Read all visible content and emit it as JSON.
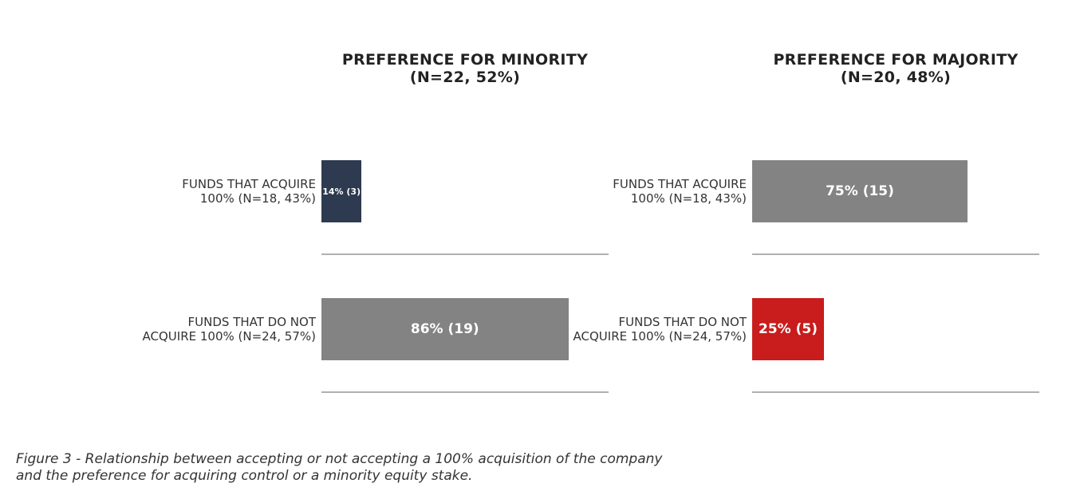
{
  "chart_data": [
    {
      "type": "bar",
      "orientation": "horizontal",
      "title": [
        "PREFERENCE FOR MINORITY",
        "(N=22, 52%)"
      ],
      "categories": [
        [
          "FUNDS THAT ACQUIRE",
          "100% (N=18, 43%)"
        ],
        [
          "FUNDS THAT DO NOT",
          "ACQUIRE 100% (N=24, 57%)"
        ]
      ],
      "values": [
        14,
        86
      ],
      "labels": [
        "14% (3)",
        "86% (19)"
      ],
      "colors": [
        "#2d3a4f",
        "#838383"
      ],
      "xlim": [
        0,
        100
      ]
    },
    {
      "type": "bar",
      "orientation": "horizontal",
      "title": [
        "PREFERENCE FOR MAJORITY",
        "(N=20, 48%)"
      ],
      "categories": [
        [
          "FUNDS THAT ACQUIRE",
          "100% (N=18, 43%)"
        ],
        [
          "FUNDS THAT DO NOT",
          "ACQUIRE 100% (N=24, 57%)"
        ]
      ],
      "values": [
        75,
        25
      ],
      "labels": [
        "75% (15)",
        "25% (5)"
      ],
      "colors": [
        "#838383",
        "#c91c1c"
      ],
      "xlim": [
        0,
        100
      ]
    }
  ],
  "caption": [
    "Figure 3 - Relationship between accepting or not accepting a 100% acquisition of the company",
    "and the preference for acquiring control or a minority equity stake."
  ]
}
